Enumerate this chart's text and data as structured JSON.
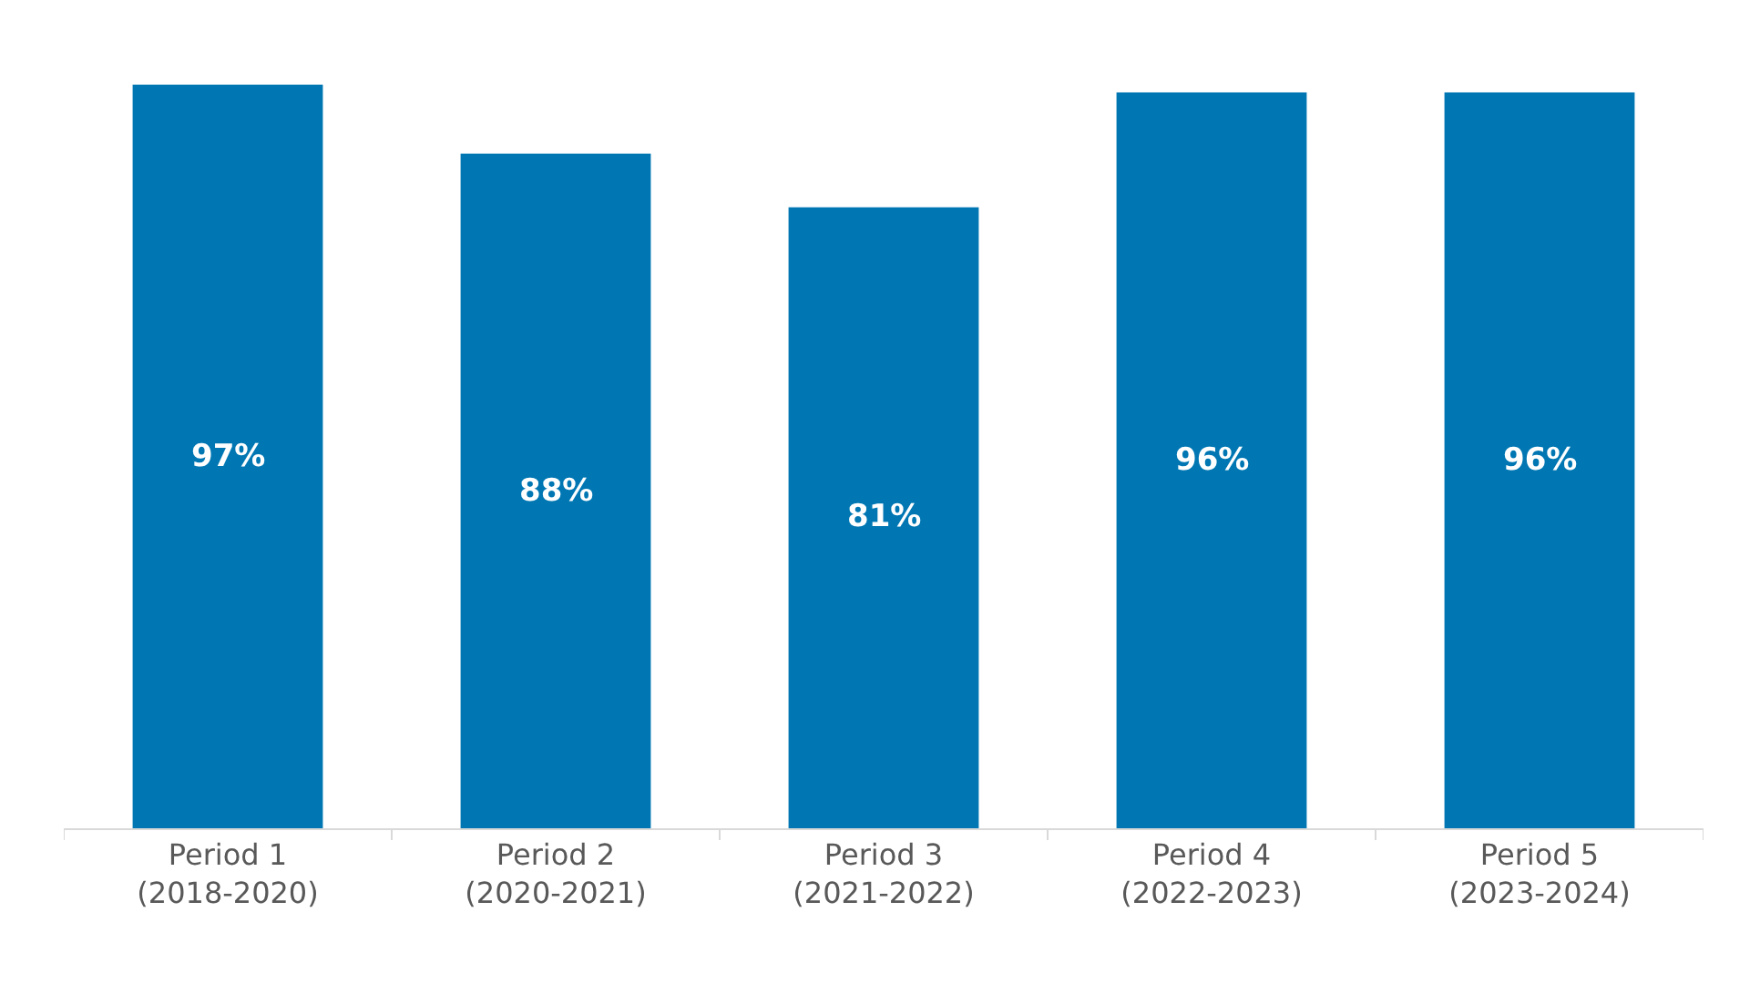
{
  "chart_data": {
    "type": "bar",
    "categories": [
      "Period 1\n(2018-2020)",
      "Period 2\n(2020-2021)",
      "Period 3\n(2021-2022)",
      "Period 4\n(2022-2023)",
      "Period 5\n(2023-2024)"
    ],
    "values": [
      97,
      88,
      81,
      96,
      96
    ],
    "value_labels": [
      "97%",
      "88%",
      "81%",
      "96%",
      "96%"
    ],
    "color": "#0077b3"
  }
}
